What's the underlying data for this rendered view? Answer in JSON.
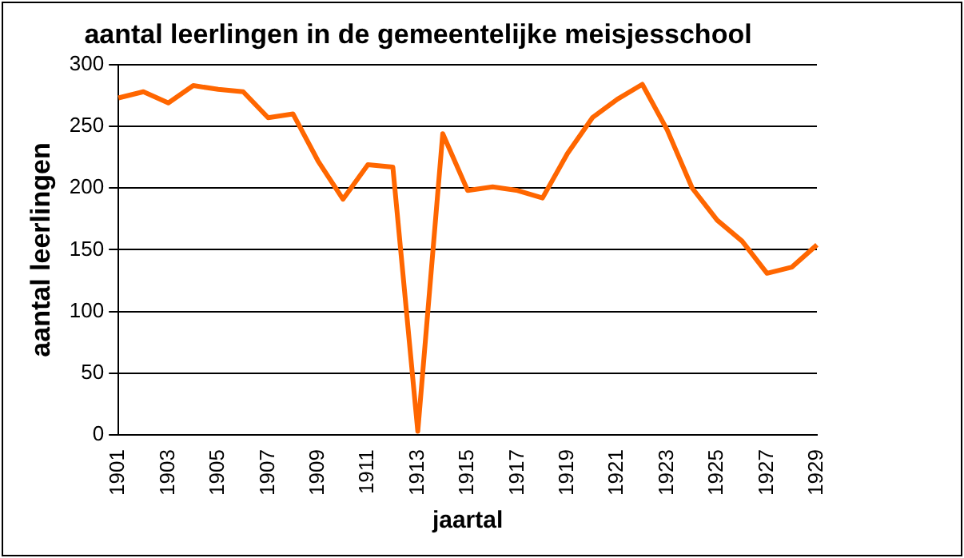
{
  "chart_data": {
    "type": "line",
    "title": "aantal leerlingen in de gemeentelijke meisjesschool",
    "xlabel": "jaartal",
    "ylabel": "aantal leerlingen",
    "categories": [
      "1901",
      null,
      "1903",
      null,
      "1905",
      null,
      "1907",
      null,
      "1909",
      null,
      "1911",
      null,
      "1913",
      null,
      "1915",
      null,
      "1917",
      null,
      "1919",
      null,
      "1921",
      null,
      "1923",
      null,
      "1925",
      null,
      "1927",
      null,
      "1929"
    ],
    "series": [
      {
        "color": "#ff6600",
        "values": [
          273,
          278,
          269,
          283,
          280,
          278,
          257,
          260,
          222,
          191,
          219,
          217,
          3,
          244,
          198,
          201,
          198,
          192,
          228,
          257,
          272,
          284,
          247,
          200,
          174,
          157,
          131,
          136,
          154
        ]
      }
    ],
    "ylim": [
      0,
      300
    ],
    "yticks": [
      0,
      50,
      100,
      150,
      200,
      250,
      300
    ],
    "grid": "y",
    "legend": false,
    "marker": "none",
    "line_style": "solid"
  }
}
